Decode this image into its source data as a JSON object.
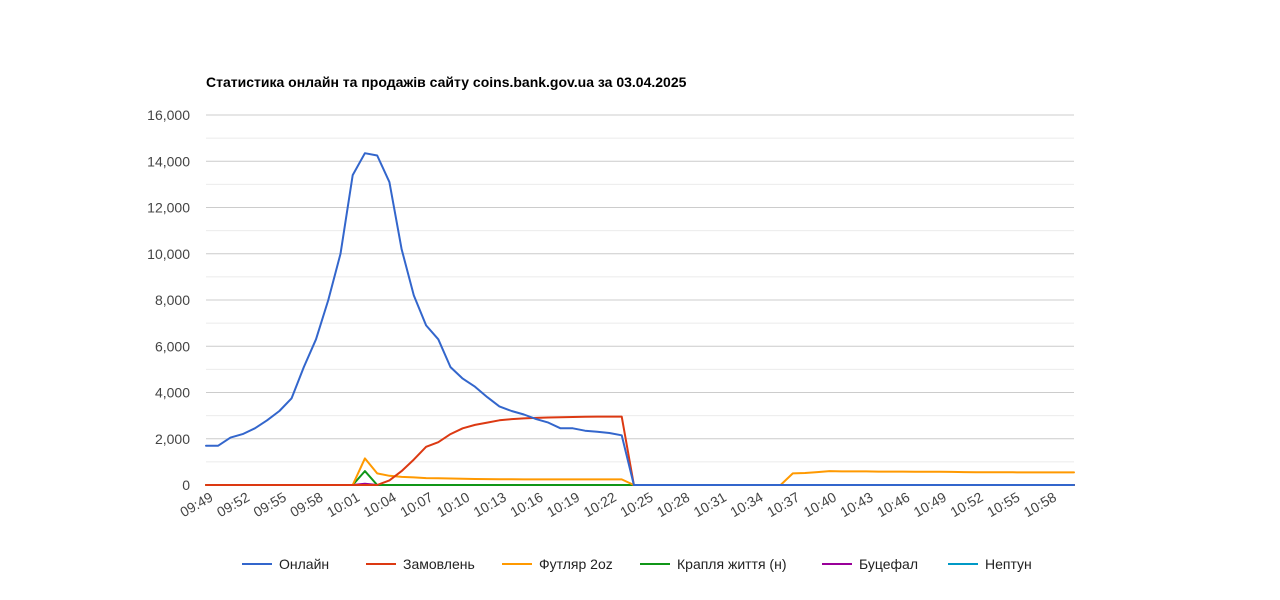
{
  "chart_data": {
    "type": "line",
    "title": "Статистика онлайн та продажів сайту coins.bank.gov.ua за 03.04.2025",
    "xlabel": "",
    "ylabel": "",
    "ylim": [
      0,
      16000
    ],
    "yticks": [
      0,
      2000,
      4000,
      6000,
      8000,
      10000,
      12000,
      14000,
      16000
    ],
    "ytick_labels": [
      "0",
      "2,000",
      "4,000",
      "6,000",
      "8,000",
      "10,000",
      "12,000",
      "14,000",
      "16,000"
    ],
    "grid": true,
    "legend_position": "bottom",
    "x": [
      "09:49",
      "09:50",
      "09:51",
      "09:52",
      "09:53",
      "09:54",
      "09:55",
      "09:56",
      "09:57",
      "09:58",
      "09:59",
      "10:00",
      "10:01",
      "10:02",
      "10:03",
      "10:04",
      "10:05",
      "10:06",
      "10:07",
      "10:08",
      "10:09",
      "10:10",
      "10:11",
      "10:12",
      "10:13",
      "10:14",
      "10:15",
      "10:16",
      "10:17",
      "10:18",
      "10:19",
      "10:20",
      "10:21",
      "10:22",
      "10:23",
      "10:24",
      "10:25",
      "10:26",
      "10:27",
      "10:28",
      "10:29",
      "10:30",
      "10:31",
      "10:32",
      "10:33",
      "10:34",
      "10:35",
      "10:36",
      "10:37",
      "10:38",
      "10:39",
      "10:40",
      "10:41",
      "10:42",
      "10:43",
      "10:44",
      "10:45",
      "10:46",
      "10:47",
      "10:48",
      "10:49",
      "10:50",
      "10:51",
      "10:52",
      "10:53",
      "10:54",
      "10:55",
      "10:56",
      "10:57",
      "10:58",
      "10:59",
      "11:00"
    ],
    "xtick_labels": [
      "09:49",
      "09:52",
      "09:55",
      "09:58",
      "10:01",
      "10:04",
      "10:07",
      "10:10",
      "10:13",
      "10:16",
      "10:19",
      "10:22",
      "10:25",
      "10:28",
      "10:31",
      "10:34",
      "10:37",
      "10:40",
      "10:43",
      "10:46",
      "10:49",
      "10:52",
      "10:55",
      "10:58"
    ],
    "series": [
      {
        "name": "Онлайн",
        "color": "#3366cc",
        "values": [
          1700,
          1700,
          2050,
          2200,
          2450,
          2800,
          3200,
          3750,
          5100,
          6300,
          8000,
          10000,
          13400,
          14350,
          14250,
          13100,
          10200,
          8200,
          6900,
          6300,
          5100,
          4600,
          4250,
          3800,
          3400,
          3200,
          3050,
          2850,
          2700,
          2450,
          2450,
          2350,
          2300,
          2250,
          2150,
          0,
          0,
          0,
          0,
          0,
          0,
          0,
          0,
          0,
          0,
          0,
          0,
          0,
          0,
          0,
          0,
          0,
          0,
          0,
          0,
          0,
          0,
          0,
          0,
          0,
          0,
          0,
          0,
          0,
          0,
          0,
          0,
          0,
          0,
          0,
          0,
          0
        ]
      },
      {
        "name": "Замовлень",
        "color": "#dc3912",
        "values": [
          0,
          0,
          0,
          0,
          0,
          0,
          0,
          0,
          0,
          0,
          0,
          0,
          0,
          0,
          0,
          200,
          600,
          1100,
          1650,
          1850,
          2200,
          2450,
          2600,
          2700,
          2800,
          2850,
          2880,
          2900,
          2920,
          2930,
          2940,
          2950,
          2960,
          2960,
          2960,
          0,
          0,
          0,
          0,
          0,
          0,
          0,
          0,
          0,
          0,
          0,
          0,
          0,
          0,
          0,
          0,
          0,
          0,
          0,
          0,
          0,
          0,
          0,
          0,
          0,
          0,
          0,
          0,
          0,
          0,
          0,
          0,
          0,
          0,
          0,
          0,
          0
        ]
      },
      {
        "name": "Футляр 2oz",
        "color": "#ff9900",
        "values": [
          0,
          0,
          0,
          0,
          0,
          0,
          0,
          0,
          0,
          0,
          0,
          0,
          0,
          1150,
          500,
          400,
          350,
          330,
          300,
          290,
          280,
          270,
          260,
          255,
          250,
          245,
          240,
          240,
          240,
          240,
          240,
          240,
          240,
          240,
          240,
          0,
          0,
          0,
          0,
          0,
          0,
          0,
          0,
          0,
          0,
          0,
          0,
          0,
          500,
          520,
          560,
          600,
          590,
          590,
          590,
          580,
          580,
          580,
          570,
          570,
          570,
          565,
          560,
          555,
          550,
          550,
          550,
          545,
          545,
          545,
          545,
          545
        ]
      },
      {
        "name": "Крапля життя (н)",
        "color": "#109618",
        "values": [
          0,
          0,
          0,
          0,
          0,
          0,
          0,
          0,
          0,
          0,
          0,
          0,
          0,
          600,
          0,
          0,
          0,
          0,
          0,
          0,
          0,
          0,
          0,
          0,
          0,
          0,
          0,
          0,
          0,
          0,
          0,
          0,
          0,
          0,
          0,
          0,
          0,
          0,
          0,
          0,
          0,
          0,
          0,
          0,
          0,
          0,
          0,
          0,
          0,
          0,
          0,
          0,
          0,
          0,
          0,
          0,
          0,
          0,
          0,
          0,
          0,
          0,
          0,
          0,
          0,
          0,
          0,
          0,
          0,
          0,
          0,
          0
        ]
      },
      {
        "name": "Буцефал",
        "color": "#990099",
        "values": [
          0,
          0,
          0,
          0,
          0,
          0,
          0,
          0,
          0,
          0,
          0,
          0,
          0,
          50,
          0,
          0,
          0,
          0,
          0,
          0,
          0,
          0,
          0,
          0,
          0,
          0,
          0,
          0,
          0,
          0,
          0,
          0,
          0,
          0,
          0,
          0,
          0,
          0,
          0,
          0,
          0,
          0,
          0,
          0,
          0,
          0,
          0,
          0,
          0,
          0,
          0,
          0,
          0,
          0,
          0,
          0,
          0,
          0,
          0,
          0,
          0,
          0,
          0,
          0,
          0,
          0,
          0,
          0,
          0,
          0,
          0,
          0
        ]
      },
      {
        "name": "Нептун",
        "color": "#0099c6",
        "values": [
          0,
          0,
          0,
          0,
          0,
          0,
          0,
          0,
          0,
          0,
          0,
          0,
          0,
          0,
          0,
          0,
          0,
          0,
          0,
          0,
          0,
          0,
          0,
          0,
          0,
          0,
          0,
          0,
          0,
          0,
          0,
          0,
          0,
          0,
          0,
          0,
          0,
          0,
          0,
          0,
          0,
          0,
          0,
          0,
          0,
          0,
          0,
          0,
          0,
          0,
          0,
          0,
          0,
          0,
          0,
          0,
          0,
          0,
          0,
          0,
          0,
          0,
          0,
          0,
          0,
          0,
          0,
          0,
          0,
          0,
          0,
          0
        ]
      }
    ]
  }
}
